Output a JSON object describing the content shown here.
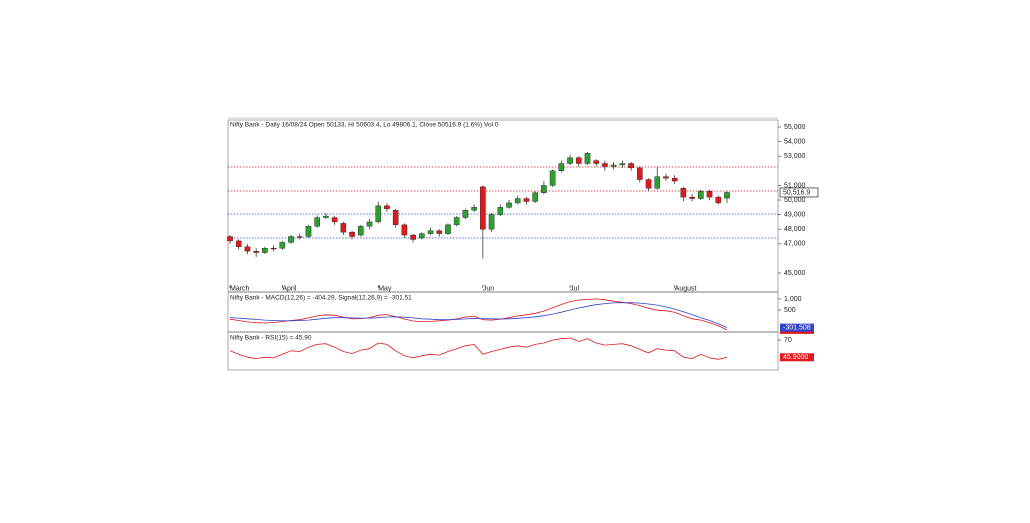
{
  "chart_data": [
    {
      "type": "candlestick",
      "title": "Nifty Bank - Daily 16/08/24 Open 50133, Hi 50603.4, Lo 49806.1, Close 50516.9 (1.6%) Vol 0",
      "open": [
        47500,
        47200,
        46800,
        46500,
        46400,
        46700,
        46700,
        47100,
        47500,
        47500,
        48200,
        48800,
        48800,
        48400,
        47800,
        47600,
        48200,
        48500,
        49600,
        49300,
        48300,
        47600,
        47400,
        47700,
        47900,
        47700,
        48300,
        48800,
        49300,
        50900,
        48000,
        49000,
        49500,
        49800,
        50100,
        49900,
        50500,
        51000,
        52000,
        52500,
        52900,
        52500,
        52700,
        52500,
        52300,
        52400,
        52500,
        52200,
        51400,
        50800,
        51600,
        51500,
        50800,
        50200,
        50100,
        50600,
        50200,
        50133
      ],
      "high": [
        47600,
        47300,
        47000,
        46700,
        46800,
        46900,
        47200,
        47600,
        47700,
        48300,
        48950,
        49100,
        48900,
        48500,
        47900,
        48300,
        48700,
        49900,
        49800,
        49400,
        48400,
        47700,
        47800,
        48100,
        48000,
        48400,
        48900,
        49400,
        49700,
        51000,
        49100,
        49700,
        50000,
        50300,
        50200,
        50600,
        51300,
        52100,
        52700,
        53100,
        53000,
        53300,
        52800,
        52700,
        52600,
        52700,
        52600,
        52300,
        51500,
        52300,
        51800,
        51700,
        50900,
        50400,
        50700,
        50700,
        50300,
        50603.4
      ],
      "low": [
        47000,
        46600,
        46300,
        46100,
        46300,
        46500,
        46600,
        47000,
        47300,
        47400,
        48100,
        48700,
        48300,
        47600,
        47300,
        47500,
        48000,
        48400,
        49200,
        48100,
        47400,
        47100,
        47300,
        47600,
        47500,
        47600,
        48200,
        48700,
        49200,
        46000,
        47800,
        48900,
        49400,
        49700,
        49700,
        49800,
        50400,
        50900,
        51900,
        52400,
        52300,
        52400,
        52300,
        52000,
        52100,
        52200,
        52000,
        51200,
        50600,
        50700,
        51300,
        51100,
        49900,
        49900,
        50000,
        50000,
        49700,
        49806.1
      ],
      "close": [
        47200,
        46800,
        46500,
        46400,
        46700,
        46650,
        47100,
        47500,
        47450,
        48200,
        48800,
        48900,
        48500,
        47800,
        47500,
        48200,
        48500,
        49600,
        49400,
        48300,
        47600,
        47300,
        47700,
        47900,
        47700,
        48300,
        48800,
        49300,
        49500,
        48000,
        49000,
        49500,
        49800,
        50100,
        49900,
        50500,
        51000,
        52000,
        52500,
        52900,
        52500,
        53200,
        52500,
        52300,
        52400,
        52500,
        52200,
        51400,
        50800,
        51600,
        51500,
        51300,
        50200,
        50100,
        50600,
        50200,
        49800,
        50516.9
      ],
      "up_color": "#2e9e2e",
      "down_color": "#e0191e",
      "xlim": [
        -0.23,
        62.85
      ],
      "xticks": [
        {
          "value": 0,
          "label": "March"
        },
        {
          "value": 6,
          "label": "April"
        },
        {
          "value": 17,
          "label": "May"
        },
        {
          "value": 29,
          "label": "Jun"
        },
        {
          "value": 39,
          "label": "Jul"
        },
        {
          "value": 51,
          "label": "August"
        }
      ],
      "ylim": [
        44180,
        55480
      ],
      "yticks": [
        {
          "value": 45000,
          "label": "45,000"
        },
        {
          "value": 47000,
          "label": "47,000"
        },
        {
          "value": 48000,
          "label": "48,000"
        },
        {
          "value": 49000,
          "label": "49,000"
        },
        {
          "value": 50000,
          "label": "50,000"
        },
        {
          "value": 51000,
          "label": "51,000"
        },
        {
          "value": 53000,
          "label": "53,000"
        },
        {
          "value": 54000,
          "label": "54,000"
        },
        {
          "value": 55000,
          "label": "55,000"
        }
      ],
      "levels": [
        {
          "value": 52260,
          "color": "#e0191e"
        },
        {
          "value": 50620,
          "color": "#e0191e"
        },
        {
          "value": 49040,
          "color": "#3344cc"
        },
        {
          "value": 47400,
          "color": "#3344cc"
        }
      ],
      "last_label": {
        "value": 50516.9,
        "label": "50,516.9"
      }
    },
    {
      "type": "line",
      "title": "Nifty Bank - MACD(12,26) = -404.29, Signal(12,26,9) = -301.51",
      "xlim": [
        -0.23,
        62.85
      ],
      "ylim": [
        -455,
        1270
      ],
      "yticks": [
        {
          "value": 1000,
          "label": "1,000"
        },
        500
      ],
      "series": [
        {
          "color": "#e0191e",
          "tag": "-404.29",
          "values": [
            80,
            20,
            -40,
            -80,
            -90,
            -70,
            -30,
            20,
            60,
            140,
            230,
            280,
            260,
            170,
            100,
            110,
            150,
            260,
            290,
            200,
            90,
            0,
            -30,
            -20,
            10,
            40,
            100,
            170,
            220,
            60,
            40,
            80,
            150,
            230,
            280,
            350,
            450,
            600,
            750,
            880,
            950,
            980,
            1000,
            960,
            900,
            850,
            790,
            700,
            580,
            490,
            460,
            400,
            230,
            100,
            40,
            -80,
            -220,
            -404.29
          ]
        },
        {
          "color": "#3344cc",
          "tag": "-301.508",
          "values": [
            150,
            130,
            100,
            70,
            40,
            20,
            10,
            10,
            20,
            40,
            80,
            120,
            150,
            150,
            140,
            130,
            130,
            150,
            180,
            190,
            170,
            140,
            100,
            80,
            60,
            60,
            70,
            90,
            120,
            110,
            100,
            90,
            100,
            120,
            150,
            190,
            240,
            310,
            400,
            500,
            590,
            670,
            740,
            790,
            820,
            830,
            830,
            810,
            770,
            720,
            640,
            540,
            420,
            290,
            150,
            20,
            -130,
            -301.51
          ]
        }
      ]
    },
    {
      "type": "line",
      "title": "Nifty Bank - RSI(15) = 45.90",
      "xlim": [
        -0.23,
        62.85
      ],
      "ylim": [
        28,
        80
      ],
      "yticks": [
        70
      ],
      "series": [
        {
          "color": "#e0191e",
          "tag": "45.9000",
          "values": [
            55,
            50,
            46,
            44,
            46,
            45,
            50,
            55,
            54,
            60,
            64,
            65,
            60,
            54,
            51,
            56,
            58,
            66,
            64,
            55,
            48,
            45,
            48,
            50,
            49,
            54,
            58,
            62,
            64,
            50,
            54,
            57,
            60,
            62,
            60,
            64,
            66,
            70,
            72,
            73,
            68,
            72,
            66,
            63,
            64,
            65,
            62,
            57,
            52,
            58,
            56,
            55,
            46,
            44,
            50,
            45,
            43,
            45.9
          ]
        }
      ]
    }
  ]
}
